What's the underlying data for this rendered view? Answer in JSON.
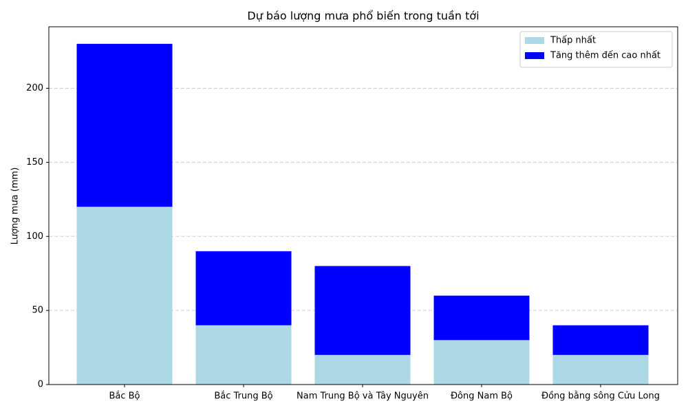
{
  "chart_data": {
    "type": "stacked_bar",
    "title": "Dự báo lượng mưa phổ biến trong tuần tới",
    "y_label": "Lượng mưa (mm)",
    "categories": [
      "Bắc Bộ",
      "Bắc Trung Bộ",
      "Nam Trung Bộ và Tây Nguyên",
      "Đông Nam Bộ",
      "Đồng bằng sông Cửu Long"
    ],
    "series": [
      {
        "name": "Thấp nhất",
        "color": "#add8e6",
        "values": [
          120,
          40,
          20,
          30,
          20
        ]
      },
      {
        "name": "Tăng thêm đến cao nhất",
        "color": "#0000ff",
        "values": [
          110,
          50,
          60,
          30,
          20
        ]
      }
    ],
    "ylim": [
      0,
      241.5
    ],
    "yticks": [
      0,
      50,
      100,
      150,
      200
    ],
    "grid": true,
    "legend": "upper-right"
  }
}
